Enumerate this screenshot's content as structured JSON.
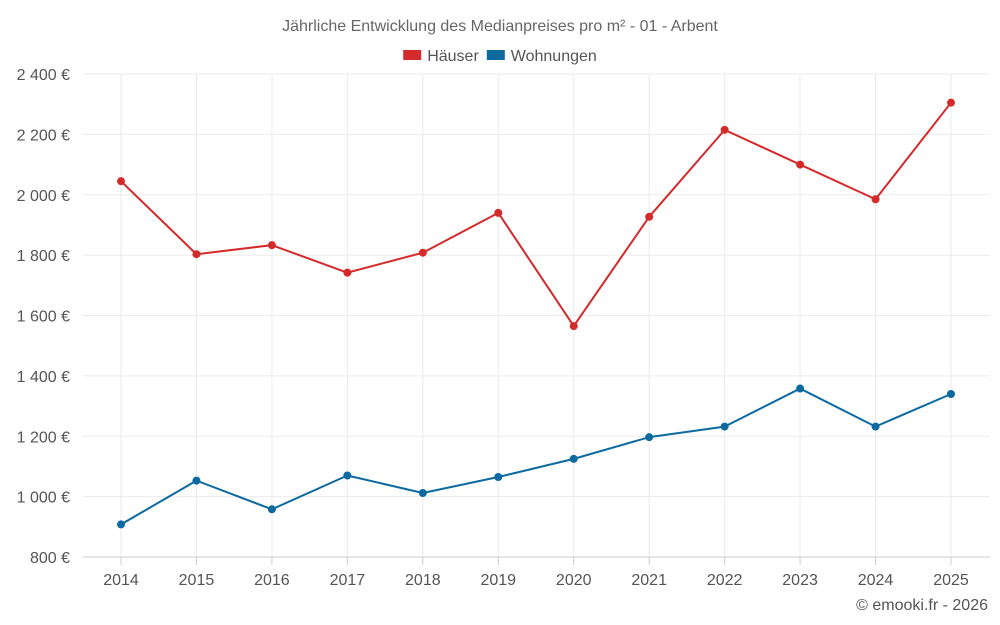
{
  "chart_data": {
    "type": "line",
    "title": "Jährliche Entwicklung des Medianpreises pro m² - 01 - Arbent",
    "categories": [
      "2014",
      "2015",
      "2016",
      "2017",
      "2018",
      "2019",
      "2020",
      "2021",
      "2022",
      "2023",
      "2024",
      "2025"
    ],
    "series": [
      {
        "name": "Häuser",
        "color": "#d42a2a",
        "values": [
          2045,
          1803,
          1833,
          1742,
          1808,
          1940,
          1565,
          1927,
          2215,
          2100,
          1985,
          2305
        ]
      },
      {
        "name": "Wohnungen",
        "color": "#0c6aa0",
        "values": [
          908,
          1053,
          958,
          1070,
          1012,
          1065,
          1125,
          1197,
          1232,
          1358,
          1232,
          1340
        ]
      }
    ],
    "ylim": [
      800,
      2400
    ],
    "yticks": [
      800,
      1000,
      1200,
      1400,
      1600,
      1800,
      2000,
      2200,
      2400
    ],
    "ytick_labels": [
      "800 €",
      "1 000 €",
      "1 200 €",
      "1 400 €",
      "1 600 €",
      "1 800 €",
      "2 000 €",
      "2 200 €",
      "2 400 €"
    ],
    "xlabel": "",
    "ylabel": "",
    "grid": true,
    "legend_position": "top-center"
  },
  "footer": {
    "copyright": "© emooki.fr - 2026"
  }
}
